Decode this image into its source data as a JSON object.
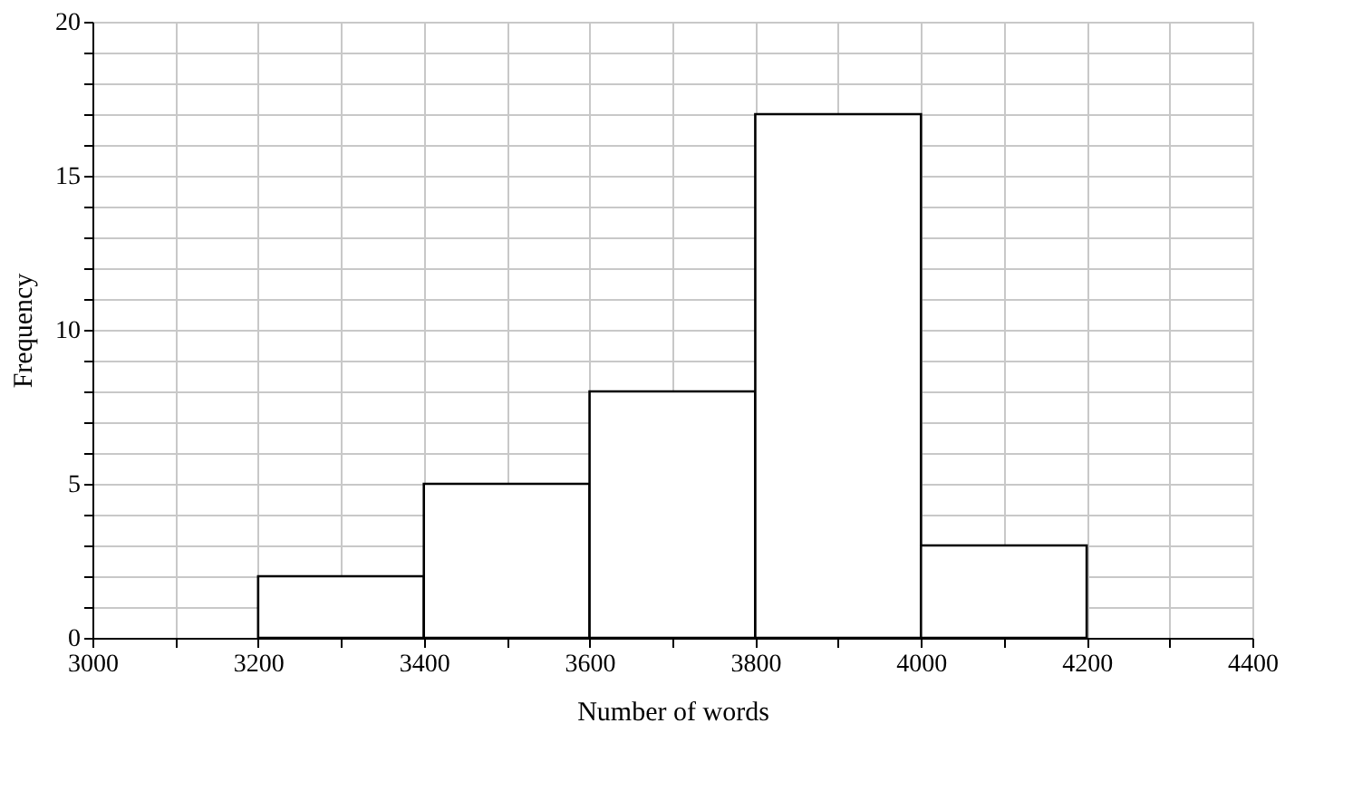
{
  "chart_data": {
    "type": "histogram",
    "xlabel": "Number of words",
    "ylabel": "Frequency",
    "bins": [
      3200,
      3400,
      3600,
      3800,
      4000,
      4200
    ],
    "values": [
      2,
      5,
      8,
      17,
      3
    ],
    "color": "#ffffff",
    "xlim": [
      3000,
      4400
    ],
    "ylim": [
      0,
      20
    ],
    "xticks": [
      3000,
      {
        "value": 3100,
        "label": null
      },
      3200,
      {
        "value": 3300,
        "label": null
      },
      3400,
      {
        "value": 3500,
        "label": null
      },
      3600,
      {
        "value": 3700,
        "label": null
      },
      3800,
      {
        "value": 3900,
        "label": null
      },
      4000,
      {
        "value": 4100,
        "label": null
      },
      4200,
      {
        "value": 4300,
        "label": null
      },
      4400
    ],
    "yticks": [
      0,
      {
        "value": 1,
        "label": null
      },
      {
        "value": 2,
        "label": null
      },
      {
        "value": 3,
        "label": null
      },
      {
        "value": 4,
        "label": null
      },
      5,
      {
        "value": 6,
        "label": null
      },
      {
        "value": 7,
        "label": null
      },
      {
        "value": 8,
        "label": null
      },
      {
        "value": 9,
        "label": null
      },
      10,
      {
        "value": 11,
        "label": null
      },
      {
        "value": 12,
        "label": null
      },
      {
        "value": 13,
        "label": null
      },
      {
        "value": 14,
        "label": null
      },
      15,
      {
        "value": 16,
        "label": null
      },
      {
        "value": 17,
        "label": null
      },
      {
        "value": 18,
        "label": null
      },
      {
        "value": 19,
        "label": null
      },
      20
    ],
    "grid": true
  }
}
